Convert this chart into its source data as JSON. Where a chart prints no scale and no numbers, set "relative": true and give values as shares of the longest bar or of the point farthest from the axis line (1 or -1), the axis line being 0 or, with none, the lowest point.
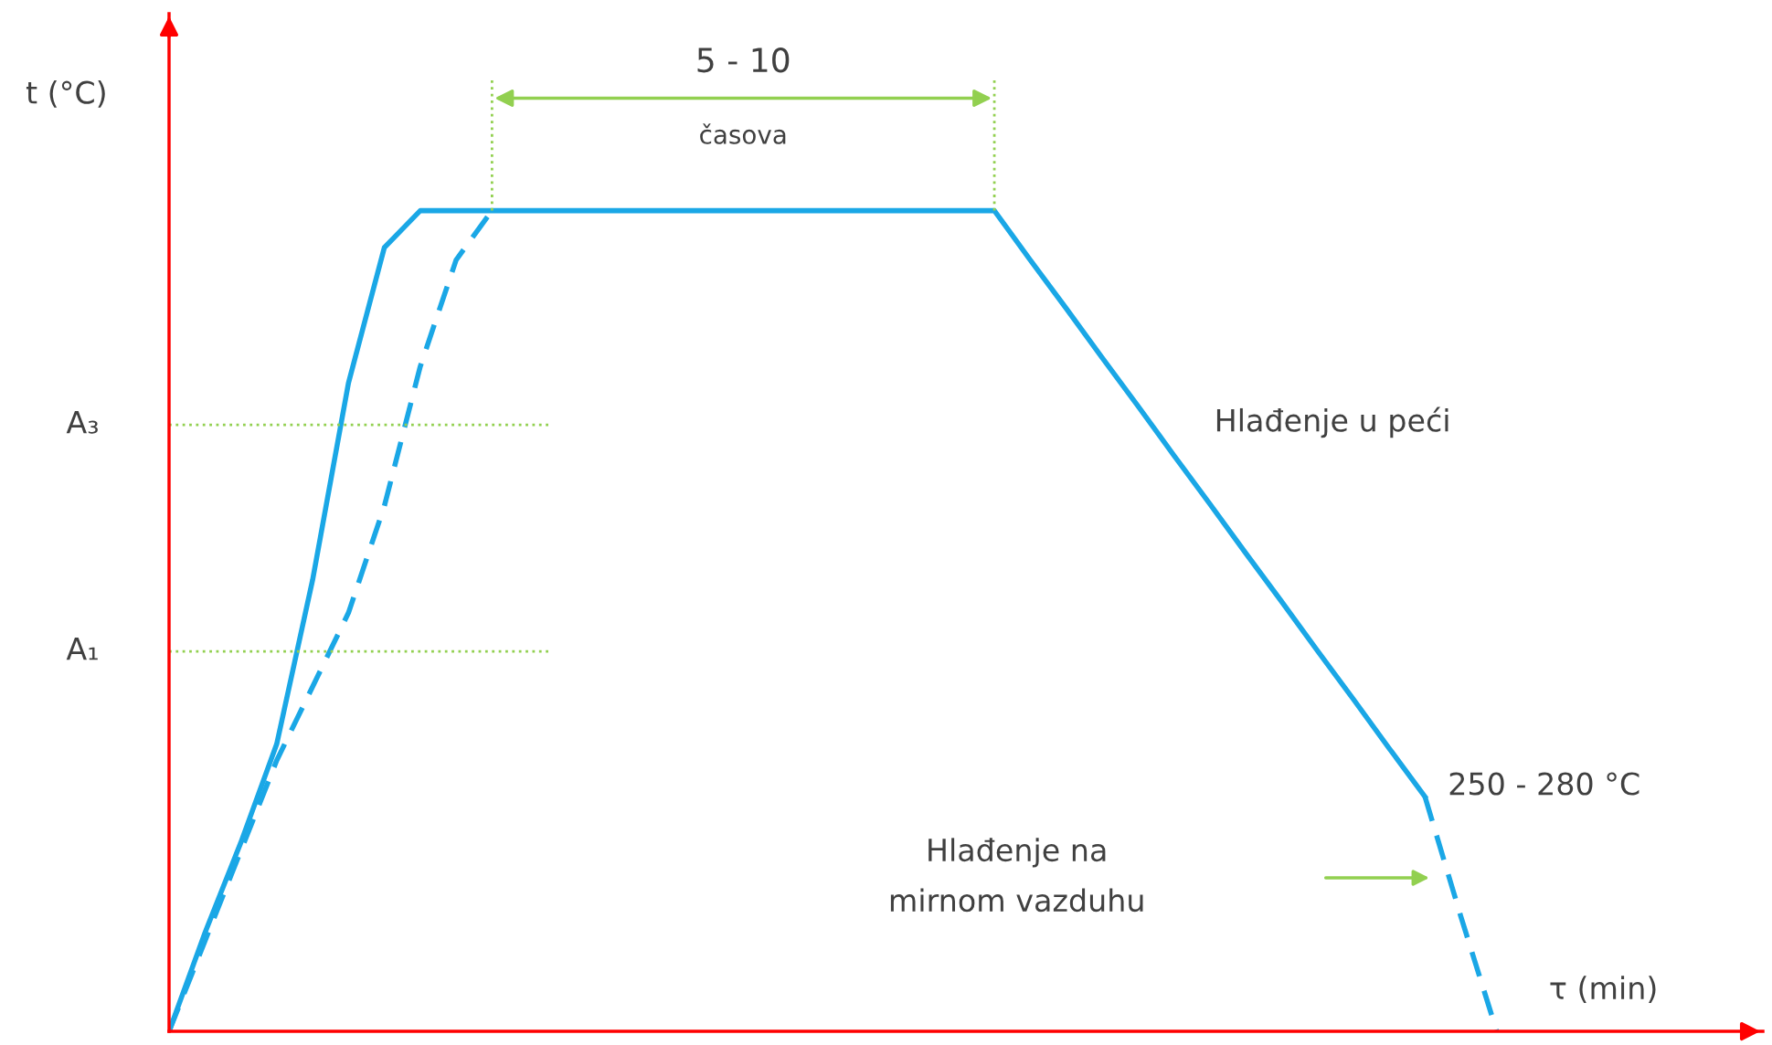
{
  "chart_data": {
    "type": "line",
    "relative": true,
    "xlabel": "τ (min)",
    "ylabel": "t (°C)",
    "categories": [
      null,
      null,
      null,
      null,
      null,
      null,
      null,
      null,
      null,
      null,
      null,
      null,
      null,
      null,
      null,
      null,
      null,
      null,
      null,
      null,
      null,
      null,
      null,
      null,
      null,
      null,
      null,
      null,
      null,
      null,
      null,
      null,
      null,
      null,
      null,
      null,
      null,
      null
    ],
    "series": [
      {
        "color": "#1aa7e6",
        "line_style": "solid",
        "values": [
          0,
          0.12,
          0.23,
          0.35,
          0.55,
          0.79,
          0.955,
          1,
          1,
          1,
          1,
          1,
          1,
          1,
          1,
          1,
          1,
          1,
          1,
          1,
          1,
          1,
          1,
          1,
          0.94,
          0.881,
          0.821,
          0.762,
          0.702,
          0.643,
          0.583,
          0.524,
          0.464,
          0.405,
          0.345,
          0.286,
          null,
          null
        ]
      },
      {
        "color": "#1aa7e6",
        "line_style": "dashed",
        "values": [
          0,
          0.11,
          0.22,
          0.33,
          0.42,
          0.51,
          0.64,
          0.81,
          0.94,
          1,
          null,
          null,
          null,
          null,
          null,
          null,
          null,
          null,
          null,
          null,
          null,
          null,
          null,
          null,
          null,
          null,
          null,
          null,
          null,
          null,
          null,
          null,
          null,
          null,
          null,
          null,
          null,
          null
        ]
      },
      {
        "color": "#1aa7e6",
        "line_style": "dashed",
        "values": [
          null,
          null,
          null,
          null,
          null,
          null,
          null,
          null,
          null,
          null,
          null,
          null,
          null,
          null,
          null,
          null,
          null,
          null,
          null,
          null,
          null,
          null,
          null,
          null,
          null,
          null,
          null,
          null,
          null,
          null,
          null,
          null,
          null,
          null,
          null,
          0.286,
          0.14,
          0
        ]
      }
    ],
    "ref_lines": [
      {
        "axis": "y",
        "value": 0.739,
        "label": "A₃",
        "color": "#92d050",
        "line_style": "dotted"
      },
      {
        "axis": "y",
        "value": 0.463,
        "label": "A₁",
        "color": "#92d050",
        "line_style": "dotted"
      }
    ],
    "annotations": [
      "5 - 10",
      "časova",
      "Hlađenje u peći",
      "250 - 280 °C",
      "Hlađenje na\nmirnom vazduhu"
    ]
  }
}
